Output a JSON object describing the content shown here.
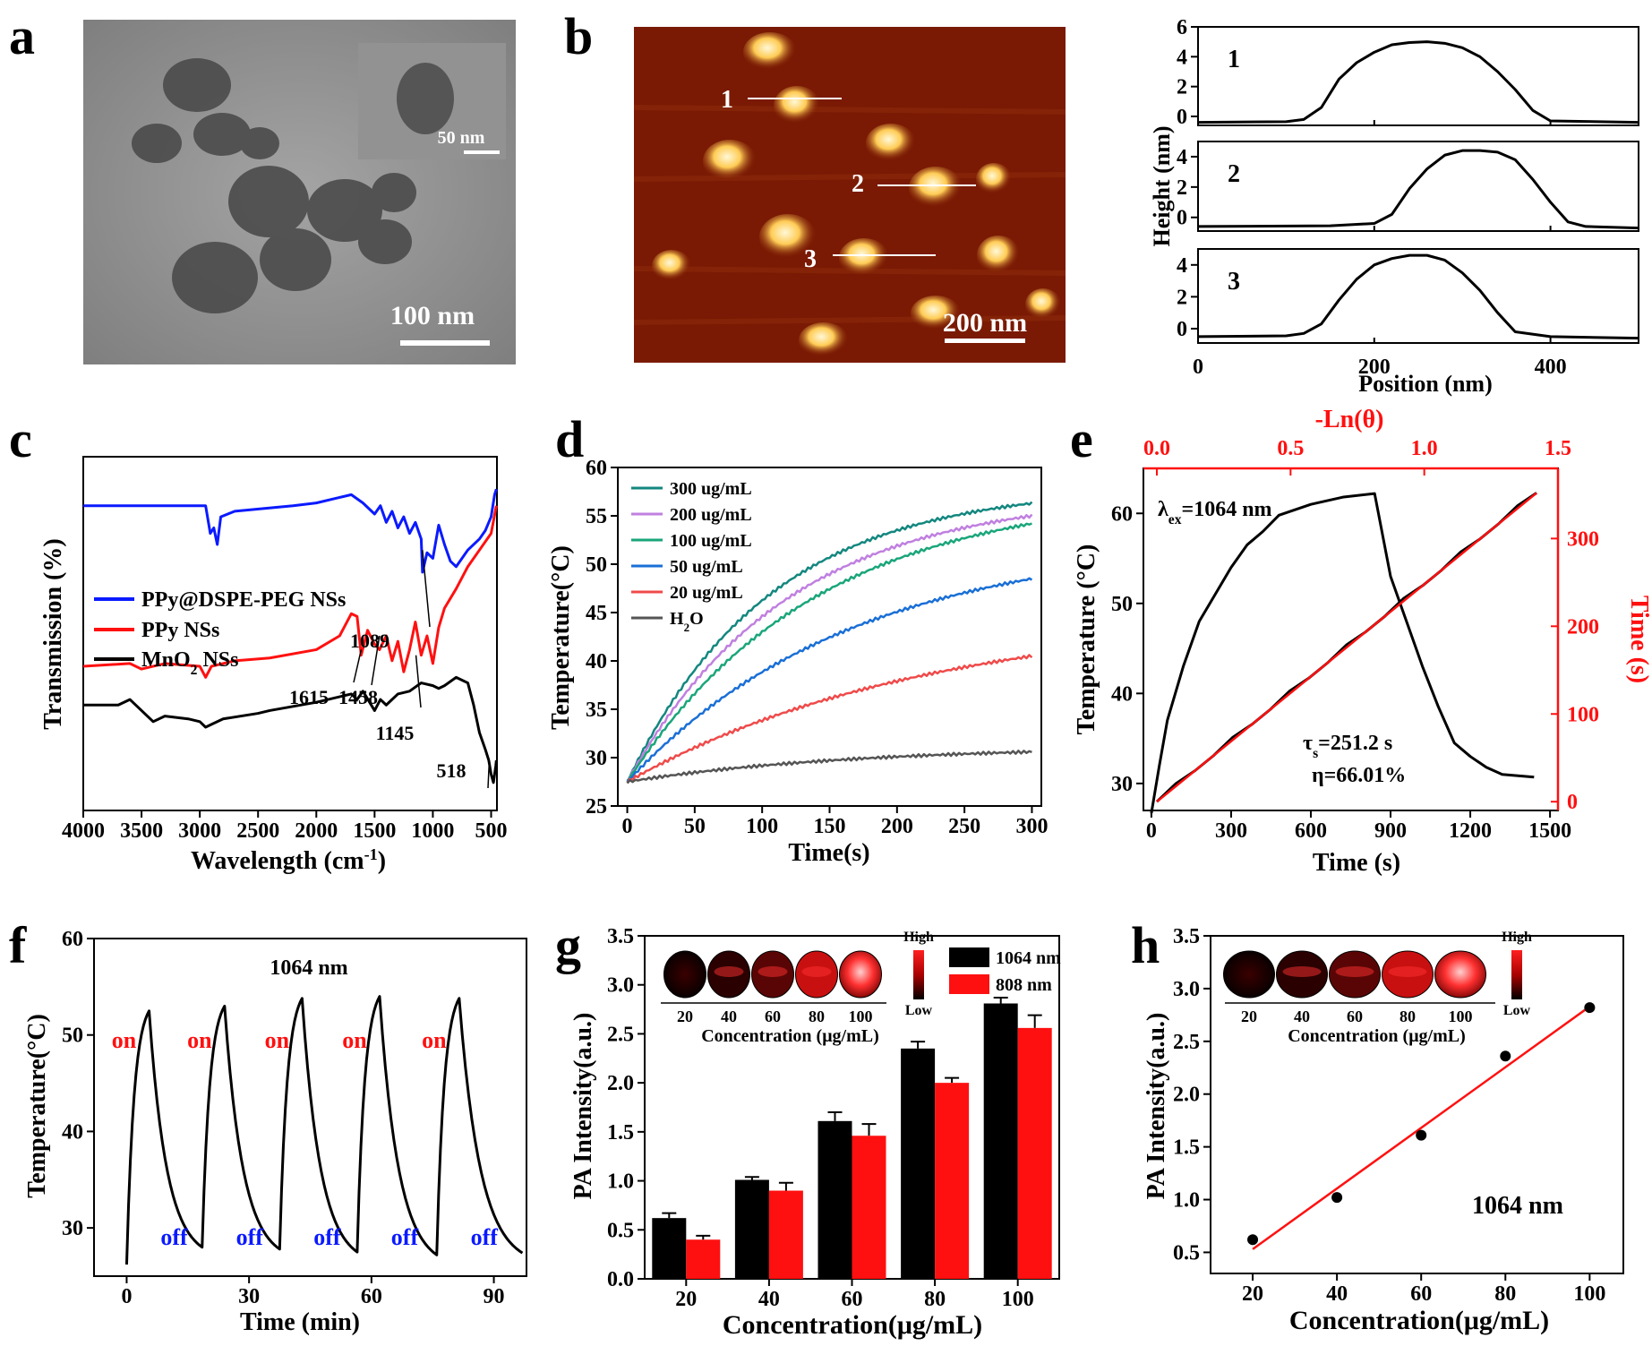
{
  "panels": {
    "a": {
      "letter": "a",
      "scale": "100 nm",
      "inset_scale": "50 nm"
    },
    "b": {
      "letter": "b",
      "scale": "200 nm",
      "profile_labels": [
        "1",
        "2",
        "3"
      ]
    },
    "c": {
      "letter": "c"
    },
    "d": {
      "letter": "d"
    },
    "e": {
      "letter": "e"
    },
    "f": {
      "letter": "f"
    },
    "g": {
      "letter": "g"
    },
    "h": {
      "letter": "h"
    }
  },
  "colors": {
    "black": "#000000",
    "red": "#ff1010",
    "blue": "#0a1aff",
    "teal": "#13877f",
    "violet": "#c080e0",
    "green": "#1aa67a",
    "midblue": "#1a6fd6",
    "lightred": "#f04a4a",
    "grey": "#555555"
  },
  "chart_data": [
    {
      "id": "b-profiles",
      "type": "line",
      "ylabel": "Height (nm)",
      "xlabel": "Position (nm)",
      "xlim": [
        0,
        500
      ],
      "xticks": [
        0,
        200,
        400
      ],
      "profiles": [
        {
          "label": "1",
          "yticks": [
            0,
            2,
            4,
            6
          ],
          "ylim": [
            -0.6,
            6
          ],
          "x": [
            0,
            100,
            120,
            140,
            160,
            180,
            200,
            220,
            240,
            260,
            280,
            300,
            320,
            340,
            360,
            380,
            400,
            500
          ],
          "y": [
            -0.4,
            -0.35,
            -0.2,
            0.6,
            2.5,
            3.6,
            4.3,
            4.8,
            4.95,
            5.0,
            4.9,
            4.6,
            4.0,
            3.0,
            1.8,
            0.4,
            -0.3,
            -0.4
          ]
        },
        {
          "label": "2",
          "yticks": [
            0,
            2,
            4
          ],
          "ylim": [
            -0.9,
            5
          ],
          "x": [
            0,
            150,
            200,
            220,
            240,
            260,
            280,
            300,
            320,
            340,
            360,
            380,
            400,
            420,
            440,
            500
          ],
          "y": [
            -0.6,
            -0.55,
            -0.4,
            0.2,
            1.9,
            3.2,
            4.1,
            4.4,
            4.4,
            4.3,
            3.8,
            2.5,
            1.0,
            -0.3,
            -0.6,
            -0.7
          ]
        },
        {
          "label": "3",
          "yticks": [
            0,
            2,
            4
          ],
          "ylim": [
            -0.9,
            5
          ],
          "x": [
            0,
            100,
            120,
            140,
            160,
            180,
            200,
            220,
            240,
            260,
            280,
            300,
            320,
            340,
            360,
            400,
            500
          ],
          "y": [
            -0.5,
            -0.45,
            -0.3,
            0.3,
            1.8,
            3.1,
            4.0,
            4.4,
            4.6,
            4.6,
            4.3,
            3.5,
            2.4,
            1.0,
            -0.2,
            -0.5,
            -0.6
          ]
        }
      ]
    },
    {
      "id": "c-ftir",
      "type": "line",
      "xlabel": "Wavelength (cm",
      "xlabel_sup": "-1",
      "xlabel_close": ")",
      "ylabel": "Transmission (%)",
      "xlim": [
        4000,
        450
      ],
      "xticks": [
        4000,
        3500,
        3000,
        2500,
        2000,
        1500,
        1000,
        500
      ],
      "series": [
        {
          "name": "PPy@DSPE-PEG NSs",
          "color": "#0a1aff",
          "x": [
            4000,
            3200,
            2950,
            2910,
            2880,
            2850,
            2820,
            2700,
            2200,
            2000,
            1800,
            1700,
            1600,
            1500,
            1450,
            1400,
            1350,
            1300,
            1250,
            1200,
            1150,
            1100,
            1089,
            1050,
            1000,
            950,
            900,
            850,
            800,
            700,
            600,
            550,
            500,
            470,
            455
          ],
          "y": [
            92,
            92,
            92,
            82,
            84,
            78,
            88,
            90,
            92,
            93,
            95,
            96,
            93,
            89,
            92,
            86,
            90,
            84,
            88,
            82,
            86,
            80,
            68,
            75,
            73,
            85,
            78,
            72,
            70,
            76,
            80,
            83,
            88,
            96,
            98
          ]
        },
        {
          "name": "PPy NSs",
          "color": "#ff1010",
          "x": [
            4000,
            3600,
            3500,
            3300,
            3000,
            2950,
            2900,
            2700,
            2400,
            2000,
            1800,
            1700,
            1650,
            1615,
            1560,
            1500,
            1458,
            1400,
            1350,
            1300,
            1250,
            1200,
            1150,
            1100,
            1050,
            1000,
            950,
            900,
            800,
            700,
            600,
            500,
            455
          ],
          "y": [
            34,
            35,
            33,
            35,
            34,
            30,
            34,
            36,
            37,
            40,
            45,
            53,
            52,
            38,
            47,
            42,
            40,
            45,
            36,
            43,
            32,
            40,
            50,
            38,
            45,
            35,
            48,
            55,
            62,
            70,
            76,
            82,
            92
          ]
        },
        {
          "name": "MnO",
          "name_sub": "2",
          "name_tail": " NSs",
          "color": "#000000",
          "x": [
            4000,
            3700,
            3600,
            3500,
            3400,
            3300,
            3100,
            3000,
            2950,
            2900,
            2800,
            2500,
            2400,
            2000,
            1700,
            1650,
            1600,
            1500,
            1450,
            1400,
            1300,
            1200,
            1100,
            1000,
            950,
            900,
            800,
            700,
            650,
            600,
            550,
            520,
            500,
            480,
            460,
            455
          ],
          "y": [
            20,
            20,
            22,
            18,
            14,
            16,
            15,
            14,
            12,
            13,
            15,
            17,
            18,
            21,
            24,
            22,
            25,
            18,
            22,
            20,
            24,
            25,
            28,
            27,
            26,
            27,
            30,
            28,
            20,
            10,
            4,
            0,
            -5,
            -8,
            -2,
            0
          ]
        }
      ],
      "annotations": [
        "1089",
        "1615",
        "1458",
        "1145",
        "518"
      ]
    },
    {
      "id": "d-heating",
      "type": "line",
      "xlabel": "Time(s)",
      "ylabel": "Temperature(°C)",
      "xlim": [
        0,
        300
      ],
      "ylim": [
        25,
        60
      ],
      "xticks": [
        0,
        50,
        100,
        150,
        200,
        250,
        300
      ],
      "yticks": [
        25,
        30,
        35,
        40,
        45,
        50,
        55,
        60
      ],
      "series": [
        {
          "name": "300 ug/mL",
          "color": "#13877f",
          "start": 27.5,
          "end": 56.3,
          "k": 0.0095
        },
        {
          "name": "200 ug/mL",
          "color": "#c080e0",
          "start": 27.5,
          "end": 55.0,
          "k": 0.0085
        },
        {
          "name": "100 ug/mL",
          "color": "#1aa67a",
          "start": 27.5,
          "end": 54.2,
          "k": 0.0072
        },
        {
          "name": "50 ug/mL",
          "color": "#1a6fd6",
          "start": 27.5,
          "end": 48.5,
          "k": 0.006
        },
        {
          "name": "20 ug/mL",
          "color": "#f04a4a",
          "start": 27.5,
          "end": 40.5,
          "k": 0.0045
        },
        {
          "name": "H",
          "name_sub": "2",
          "name_tail": "O",
          "color": "#555555",
          "start": 27.5,
          "end": 30.6,
          "k": 0.006
        }
      ]
    },
    {
      "id": "e-cooling",
      "type": "line",
      "xlabel": "Time (s)",
      "ylabel": "Temperature (°C)",
      "ylabel_right": "Time (s)",
      "xlabel_top": "-Ln(θ)",
      "xlim": [
        0,
        1500
      ],
      "ylim": [
        27,
        65
      ],
      "xticks": [
        0,
        300,
        600,
        900,
        1200,
        1500
      ],
      "yticks": [
        30,
        40,
        50,
        60
      ],
      "top_xlim": [
        0,
        1.5
      ],
      "top_xticks": [
        "0.0",
        "0.5",
        "1.0",
        "1.5"
      ],
      "right_ylim": [
        -10,
        380
      ],
      "right_yticks": [
        0,
        100,
        200,
        300
      ],
      "temperature": {
        "x": [
          0,
          30,
          60,
          120,
          180,
          240,
          300,
          360,
          420,
          480,
          600,
          720,
          840,
          900,
          960,
          1020,
          1080,
          1140,
          1200,
          1260,
          1320,
          1440
        ],
        "y": [
          26.7,
          32,
          37,
          43,
          48,
          51,
          54,
          56.5,
          58,
          59.8,
          61,
          61.8,
          62.2,
          53,
          48,
          43,
          38.5,
          34.5,
          33,
          31.8,
          31,
          30.7
        ]
      },
      "fit": {
        "x0": 0,
        "y0": 0,
        "x1": 1.42,
        "y1": 352
      },
      "labels": {
        "lambda": "λ",
        "lambda_sub": "ex",
        "lambda_value": "=1064 nm",
        "tau": "τ",
        "tau_sub": "s",
        "tau_value": "=251.2 s",
        "eta": "η=66.01%"
      }
    },
    {
      "id": "f-cycles",
      "type": "line",
      "xlabel": "Time (min)",
      "ylabel": "Temperature(°C)",
      "xlim": [
        -8,
        98
      ],
      "ylim": [
        25,
        60
      ],
      "xticks": [
        0,
        30,
        60,
        90
      ],
      "yticks": [
        30,
        40,
        50,
        60
      ],
      "title": "1064 nm",
      "cycles": [
        {
          "start": 0,
          "peak_t": 5.5,
          "peak": 52.5,
          "end_t": 18.5,
          "end": 28
        },
        {
          "start": 18.5,
          "peak_t": 24,
          "peak": 53,
          "end_t": 37.5,
          "end": 27.8
        },
        {
          "start": 37.5,
          "peak_t": 43,
          "peak": 53.8,
          "end_t": 56.5,
          "end": 27.5
        },
        {
          "start": 56.5,
          "peak_t": 62,
          "peak": 54,
          "end_t": 76,
          "end": 27.2
        },
        {
          "start": 76,
          "peak_t": 81.5,
          "peak": 53.8,
          "end_t": 97,
          "end": 27.4
        }
      ],
      "on_label": "on",
      "off_label": "off"
    },
    {
      "id": "g-pa-bar",
      "type": "bar",
      "xlabel": "Concentration(μg/mL)",
      "ylabel": "PA Intensity(a.u.)",
      "categories": [
        "20",
        "40",
        "60",
        "80",
        "100"
      ],
      "ylim": [
        0,
        3.5
      ],
      "yticks": [
        "0.0",
        "0.5",
        "1.0",
        "1.5",
        "2.0",
        "2.5",
        "3.0",
        "3.5"
      ],
      "series": [
        {
          "name": "1064 nm",
          "color": "#000000",
          "values": [
            0.62,
            1.01,
            1.61,
            2.35,
            2.81
          ],
          "errors": [
            0.05,
            0.03,
            0.09,
            0.07,
            0.06
          ]
        },
        {
          "name": "808 nm",
          "color": "#ff1010",
          "values": [
            0.4,
            0.9,
            1.46,
            2.0,
            2.56
          ],
          "errors": [
            0.04,
            0.08,
            0.12,
            0.05,
            0.13
          ]
        }
      ],
      "inset": {
        "labels": [
          "20",
          "40",
          "60",
          "80",
          "100"
        ],
        "xlabel": "Concentration (μg/mL)",
        "high": "High",
        "low": "Low"
      }
    },
    {
      "id": "h-pa-linear",
      "type": "scatter",
      "xlabel": "Concentration(μg/mL)",
      "ylabel": "PA Intensity(a.u.)",
      "xlim": [
        10,
        108
      ],
      "ylim": [
        0.3,
        3.5
      ],
      "xticks": [
        20,
        40,
        60,
        80,
        100
      ],
      "yticks": [
        "0.5",
        "1.0",
        "1.5",
        "2.0",
        "2.5",
        "3.0",
        "3.5"
      ],
      "x": [
        20,
        40,
        60,
        80,
        100
      ],
      "y": [
        0.62,
        1.02,
        1.61,
        2.36,
        2.82
      ],
      "fit": {
        "x0": 20,
        "y0": 0.53,
        "x1": 100,
        "y1": 2.83
      },
      "label": "1064 nm",
      "inset": {
        "labels": [
          "20",
          "40",
          "60",
          "80",
          "100"
        ],
        "xlabel": "Concentration (μg/mL)",
        "high": "High",
        "low": "Low"
      }
    }
  ]
}
